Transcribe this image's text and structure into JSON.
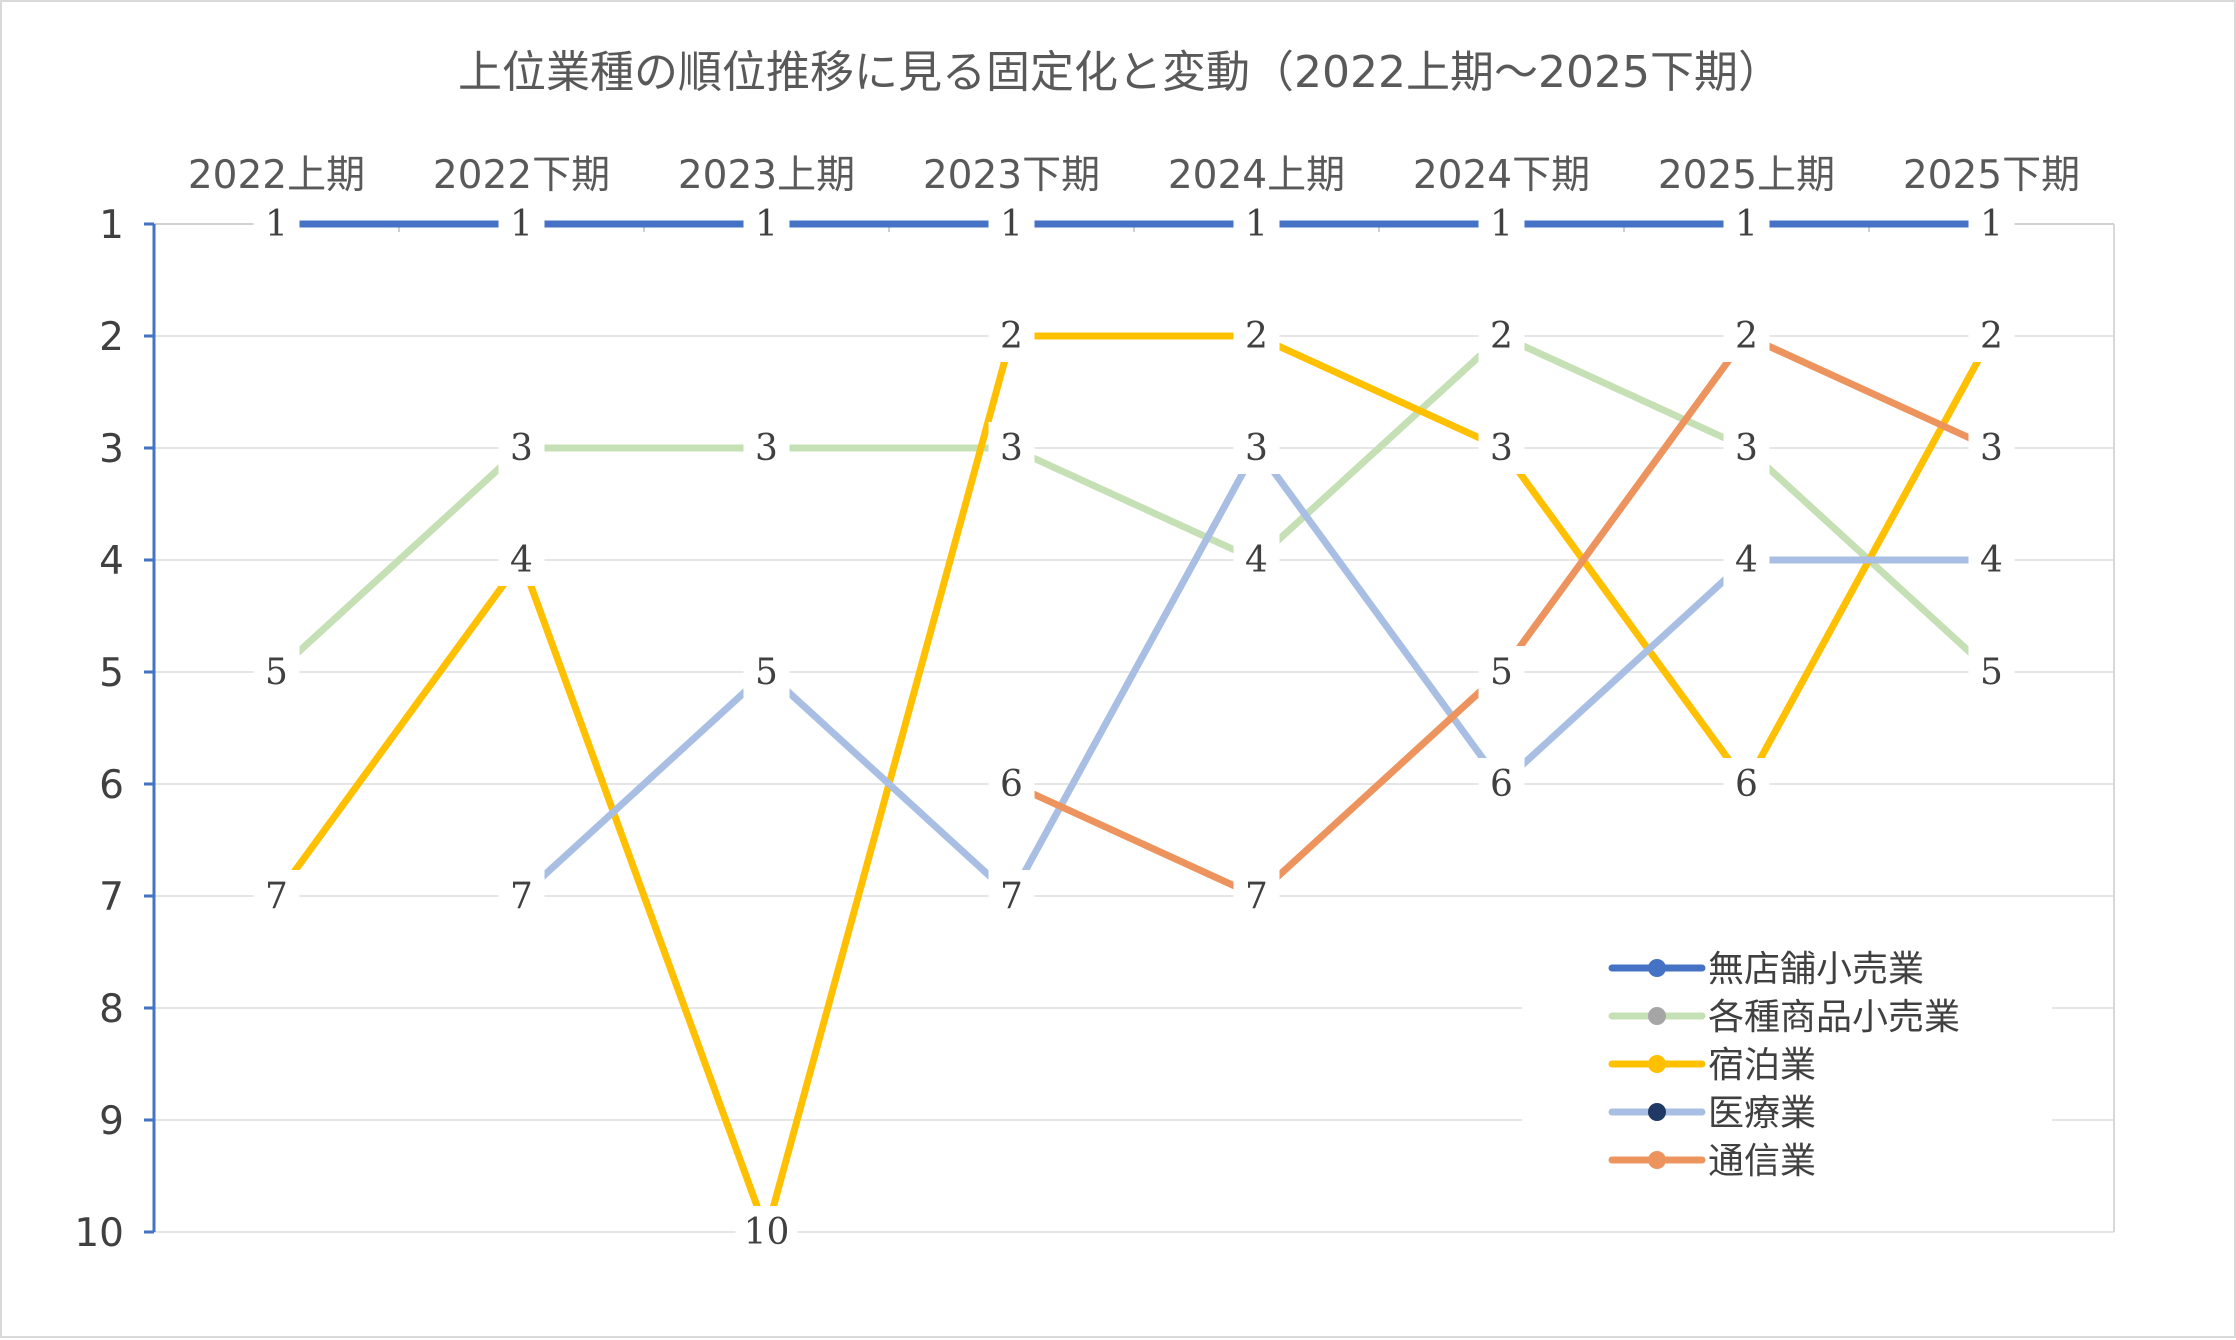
{
  "chart_data": {
    "type": "line",
    "title": "上位業種の順位推移に見る固定化と変動（2022上期～2025下期）",
    "xlabel": "",
    "ylabel": "",
    "categories": [
      "2022上期",
      "2022下期",
      "2023上期",
      "2023下期",
      "2024上期",
      "2024下期",
      "2025上期",
      "2025下期"
    ],
    "ylim": [
      1,
      10
    ],
    "y_reversed": true,
    "yticks": [
      1,
      2,
      3,
      4,
      5,
      6,
      7,
      8,
      9,
      10
    ],
    "grid": true,
    "x_axis_position": "top",
    "legend_position": "bottom-right",
    "series": [
      {
        "name": "無店舗小売業",
        "color": "#4472C4",
        "values": [
          1,
          1,
          1,
          1,
          1,
          1,
          1,
          1
        ]
      },
      {
        "name": "各種商品小売業",
        "color": "#C5E0B4",
        "marker_color": "#A5A5A5",
        "values": [
          5,
          3,
          3,
          3,
          4,
          2,
          3,
          5
        ]
      },
      {
        "name": "宿泊業",
        "color": "#FFC000",
        "values": [
          7,
          4,
          10,
          2,
          2,
          3,
          6,
          2
        ]
      },
      {
        "name": "医療業",
        "color": "#A9BEE3",
        "marker_color": "#203864",
        "values": [
          null,
          7,
          5,
          7,
          3,
          6,
          4,
          4
        ]
      },
      {
        "name": "通信業",
        "color": "#ED945E",
        "values": [
          null,
          null,
          null,
          6,
          7,
          5,
          2,
          3
        ]
      }
    ]
  }
}
